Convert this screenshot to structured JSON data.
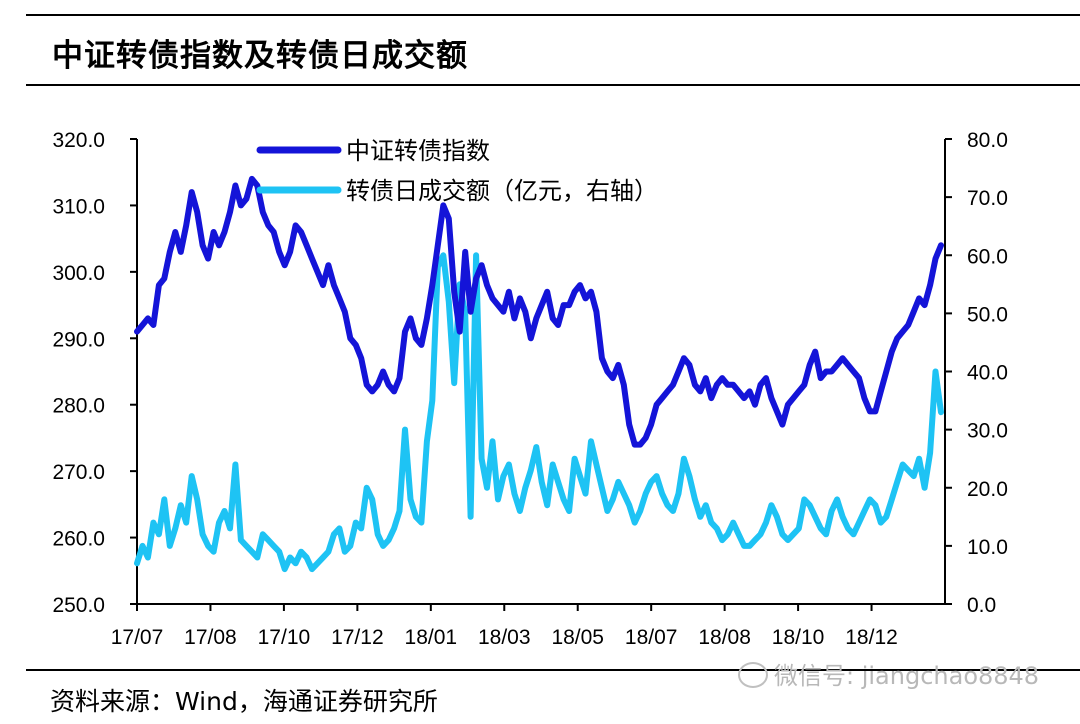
{
  "header": {
    "title": "中证转债指数及转债日成交额"
  },
  "footer": {
    "source": "资料来源：Wind，海通证券研究所",
    "watermark": "微信号: jiangchao8848"
  },
  "chart_data": {
    "type": "line",
    "title": "中证转债指数及转债日成交额",
    "x_tick_labels": [
      "17/07",
      "17/08",
      "17/10",
      "17/12",
      "18/01",
      "18/03",
      "18/05",
      "18/07",
      "18/08",
      "18/10",
      "18/12"
    ],
    "y_left": {
      "range": [
        250,
        320
      ],
      "ticks": [
        "250.0",
        "260.0",
        "270.0",
        "280.0",
        "290.0",
        "300.0",
        "310.0",
        "320.0"
      ]
    },
    "y_right": {
      "range": [
        0,
        80
      ],
      "ticks": [
        "0.0",
        "10.0",
        "20.0",
        "30.0",
        "40.0",
        "50.0",
        "60.0",
        "70.0",
        "80.0"
      ]
    },
    "grid": false,
    "legend_position": "top-left",
    "series": [
      {
        "name": "中证转债指数",
        "axis": "left",
        "color": "#1414d8",
        "values": [
          291,
          292,
          293,
          292,
          298,
          299,
          303,
          306,
          303,
          307,
          312,
          309,
          304,
          302,
          306,
          304,
          306,
          309,
          313,
          310,
          311,
          314,
          313,
          309,
          307,
          306,
          303,
          301,
          303,
          307,
          306,
          304,
          302,
          300,
          298,
          301,
          298,
          296,
          294,
          290,
          289,
          287,
          283,
          282,
          283,
          285,
          283,
          282,
          284,
          291,
          293,
          290,
          289,
          293,
          298,
          304,
          310,
          308,
          297,
          291,
          303,
          294,
          299,
          301,
          298,
          296,
          295,
          294,
          297,
          293,
          296,
          294,
          290,
          293,
          295,
          297,
          293,
          292,
          295,
          295,
          297,
          298,
          296,
          297,
          294,
          287,
          285,
          284,
          286,
          283,
          277,
          274,
          274,
          275,
          277,
          280,
          281,
          282,
          283,
          285,
          287,
          286,
          283,
          282,
          284,
          281,
          283,
          284,
          283,
          283,
          282,
          281,
          282,
          280,
          283,
          284,
          281,
          279,
          277,
          280,
          281,
          282,
          283,
          286,
          288,
          284,
          285,
          285,
          286,
          287,
          286,
          285,
          284,
          281,
          279,
          279,
          282,
          285,
          288,
          290,
          291,
          292,
          294,
          296,
          295,
          298,
          302,
          304
        ]
      },
      {
        "name": "转债日成交额（亿元，右轴）",
        "axis": "right",
        "color": "#1ec3f4",
        "values": [
          7,
          10,
          8,
          14,
          12,
          18,
          10,
          13,
          17,
          14,
          22,
          18,
          12,
          10,
          9,
          14,
          16,
          13,
          24,
          11,
          10,
          9,
          8,
          12,
          11,
          10,
          9,
          6,
          8,
          7,
          9,
          8,
          6,
          7,
          8,
          9,
          12,
          13,
          9,
          10,
          14,
          13,
          20,
          18,
          12,
          10,
          11,
          13,
          16,
          30,
          18,
          15,
          14,
          28,
          35,
          58,
          60,
          52,
          38,
          55,
          50,
          15,
          60,
          25,
          20,
          28,
          18,
          22,
          24,
          19,
          16,
          20,
          23,
          27,
          21,
          17,
          24,
          21,
          18,
          16,
          25,
          22,
          19,
          28,
          24,
          20,
          16,
          18,
          21,
          19,
          17,
          14,
          16,
          19,
          21,
          22,
          19,
          17,
          16,
          19,
          25,
          22,
          18,
          15,
          17,
          14,
          13,
          11,
          12,
          14,
          12,
          10,
          10,
          11,
          12,
          14,
          17,
          15,
          12,
          11,
          12,
          13,
          18,
          17,
          15,
          13,
          12,
          16,
          18,
          15,
          13,
          12,
          14,
          16,
          18,
          17,
          14,
          15,
          18,
          21,
          24,
          23,
          22,
          25,
          20,
          26,
          40,
          33
        ]
      }
    ]
  }
}
